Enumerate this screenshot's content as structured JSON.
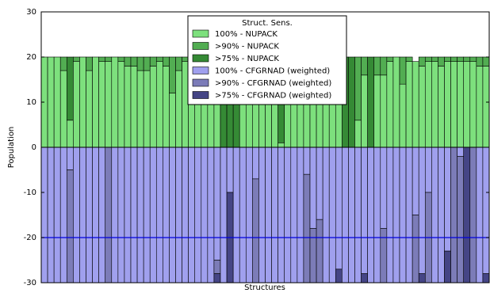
{
  "chart_data": {
    "type": "diverging-stacked-bar",
    "ylabel": "Population",
    "xlabel": "Structures",
    "legend_title": "Struct. Sens.",
    "ylim": [
      -30,
      30
    ],
    "yticks": [
      -30,
      -20,
      -10,
      0,
      10,
      20,
      30
    ],
    "reference_line": {
      "value": -20,
      "color": "#0000dd"
    },
    "legend": "upper center",
    "series": [
      {
        "name": "100% - NUPACK",
        "color": "#7de07d",
        "values": [
          20,
          20,
          20,
          17,
          6,
          19,
          20,
          17,
          20,
          19,
          19,
          20,
          19,
          18,
          18,
          17,
          17,
          18,
          19,
          18,
          12,
          17,
          19,
          20,
          20,
          20,
          20,
          20,
          0,
          0,
          0,
          20,
          20,
          20,
          20,
          20,
          20,
          1,
          20,
          20,
          20,
          20,
          20,
          20,
          20,
          20,
          20,
          0,
          0,
          6,
          16,
          0,
          16,
          16,
          19,
          20,
          14,
          19,
          19,
          18,
          19,
          19,
          18,
          19,
          19,
          19,
          19,
          19,
          18,
          18
        ]
      },
      {
        "name": ">90% - NUPACK",
        "color": "#52ad52",
        "values": [
          0,
          0,
          0,
          3,
          0,
          1,
          0,
          3,
          0,
          1,
          1,
          0,
          1,
          2,
          2,
          3,
          3,
          2,
          1,
          2,
          8,
          3,
          1,
          0,
          0,
          0,
          0,
          0,
          0,
          0,
          0,
          0,
          0,
          0,
          0,
          0,
          0,
          0,
          0,
          0,
          0,
          0,
          0,
          0,
          0,
          0,
          0,
          0,
          0,
          14,
          4,
          0,
          4,
          4,
          1,
          0,
          6,
          1,
          0,
          2,
          1,
          1,
          2,
          1,
          1,
          1,
          1,
          1,
          2,
          2
        ]
      },
      {
        "name": ">75% - NUPACK",
        "color": "#358a35",
        "values": [
          0,
          0,
          0,
          0,
          14,
          0,
          0,
          0,
          0,
          0,
          0,
          0,
          0,
          0,
          0,
          0,
          0,
          0,
          0,
          0,
          0,
          0,
          0,
          0,
          0,
          0,
          0,
          0,
          20,
          20,
          20,
          0,
          0,
          0,
          0,
          0,
          0,
          19,
          0,
          0,
          0,
          0,
          0,
          0,
          0,
          0,
          0,
          20,
          20,
          0,
          0,
          20,
          0,
          0,
          0,
          0,
          0,
          0,
          0,
          0,
          0,
          0,
          0,
          0,
          0,
          0,
          0,
          0,
          0,
          0
        ]
      },
      {
        "name": "100% - CFGRNAD (weighted)",
        "color": "#a0a0ee",
        "values": [
          -30,
          -30,
          -30,
          -30,
          -5,
          -30,
          -30,
          -30,
          -30,
          -30,
          0,
          -30,
          -30,
          -30,
          -30,
          -30,
          -30,
          -30,
          -30,
          -30,
          -30,
          -30,
          -30,
          -30,
          -30,
          -30,
          -30,
          -25,
          -30,
          -10,
          -30,
          -30,
          -30,
          -7,
          -30,
          -30,
          -30,
          -30,
          -30,
          -30,
          -30,
          -6,
          -18,
          -16,
          -30,
          -30,
          -27,
          -30,
          -30,
          -30,
          -28,
          -30,
          -30,
          -18,
          -30,
          -30,
          -30,
          -30,
          -15,
          -28,
          -10,
          -30,
          -30,
          -23,
          0,
          -2,
          0,
          0,
          -30,
          -28
        ]
      },
      {
        "name": ">90% - CFGRNAD (weighted)",
        "color": "#7c7cb8",
        "values": [
          0,
          0,
          0,
          0,
          -25,
          0,
          0,
          0,
          0,
          0,
          -30,
          0,
          0,
          0,
          0,
          0,
          0,
          0,
          0,
          0,
          0,
          0,
          0,
          0,
          0,
          0,
          0,
          -3,
          0,
          0,
          0,
          0,
          0,
          -23,
          0,
          0,
          0,
          0,
          0,
          0,
          0,
          -24,
          -12,
          -14,
          0,
          0,
          0,
          0,
          0,
          0,
          0,
          0,
          0,
          -12,
          0,
          0,
          0,
          0,
          -15,
          0,
          -20,
          0,
          0,
          0,
          -30,
          -28,
          0,
          -30,
          0,
          0
        ]
      },
      {
        "name": ">75% - CFGRNAD (weighted)",
        "color": "#454585",
        "values": [
          0,
          0,
          0,
          0,
          0,
          0,
          0,
          0,
          0,
          0,
          0,
          0,
          0,
          0,
          0,
          0,
          0,
          0,
          0,
          0,
          0,
          0,
          0,
          0,
          0,
          0,
          0,
          -2,
          0,
          -20,
          0,
          0,
          0,
          0,
          0,
          0,
          0,
          0,
          0,
          0,
          0,
          0,
          0,
          0,
          0,
          0,
          -3,
          0,
          0,
          0,
          -2,
          0,
          0,
          0,
          0,
          0,
          0,
          0,
          0,
          -2,
          0,
          0,
          0,
          -7,
          0,
          0,
          -30,
          0,
          0,
          -2
        ]
      }
    ]
  }
}
